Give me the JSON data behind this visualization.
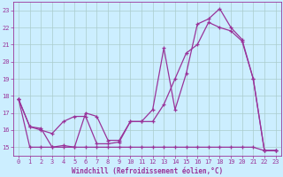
{
  "title": "",
  "xlabel": "Windchill (Refroidissement éolien,°C)",
  "ylabel": "",
  "background_color": "#cceeff",
  "grid_color": "#aacccc",
  "line_color": "#993399",
  "xlim": [
    -0.5,
    23.5
  ],
  "ylim": [
    14.5,
    23.5
  ],
  "yticks": [
    15,
    16,
    17,
    18,
    19,
    20,
    21,
    22,
    23
  ],
  "xticks": [
    0,
    1,
    2,
    3,
    4,
    5,
    6,
    7,
    8,
    9,
    10,
    11,
    12,
    13,
    14,
    15,
    16,
    17,
    18,
    19,
    20,
    21,
    22,
    23
  ],
  "line1_x": [
    0,
    1,
    2,
    3,
    4,
    5,
    6,
    7,
    8,
    9,
    10,
    11,
    12,
    13,
    14,
    15,
    16,
    17,
    18,
    19,
    20,
    21,
    22,
    23
  ],
  "line1_y": [
    17.8,
    16.2,
    16.1,
    15.0,
    15.1,
    15.0,
    17.0,
    16.8,
    15.4,
    15.4,
    16.5,
    16.5,
    17.2,
    20.8,
    17.2,
    19.3,
    22.2,
    22.5,
    23.1,
    22.0,
    21.3,
    19.0,
    14.8,
    14.8
  ],
  "line2_x": [
    0,
    1,
    2,
    3,
    4,
    5,
    6,
    7,
    8,
    9,
    10,
    11,
    12,
    13,
    14,
    15,
    16,
    17,
    18,
    19,
    20,
    21,
    22,
    23
  ],
  "line2_y": [
    17.8,
    16.2,
    16.0,
    15.8,
    16.5,
    16.8,
    16.8,
    15.2,
    15.2,
    15.3,
    16.5,
    16.5,
    16.5,
    17.5,
    19.0,
    20.5,
    21.0,
    22.3,
    22.0,
    21.8,
    21.2,
    19.0,
    14.8,
    14.8
  ],
  "line3_x": [
    0,
    1,
    2,
    3,
    4,
    5,
    6,
    7,
    8,
    9,
    10,
    11,
    12,
    13,
    14,
    15,
    16,
    17,
    18,
    19,
    20,
    21,
    22,
    23
  ],
  "line3_y": [
    17.8,
    15.0,
    15.0,
    15.0,
    15.0,
    15.0,
    15.0,
    15.0,
    15.0,
    15.0,
    15.0,
    15.0,
    15.0,
    15.0,
    15.0,
    15.0,
    15.0,
    15.0,
    15.0,
    15.0,
    15.0,
    15.0,
    14.8,
    14.8
  ],
  "xlabel_fontsize": 5.5,
  "tick_fontsize": 5.0,
  "linewidth": 0.9,
  "markersize": 3.5,
  "markeredgewidth": 0.9
}
